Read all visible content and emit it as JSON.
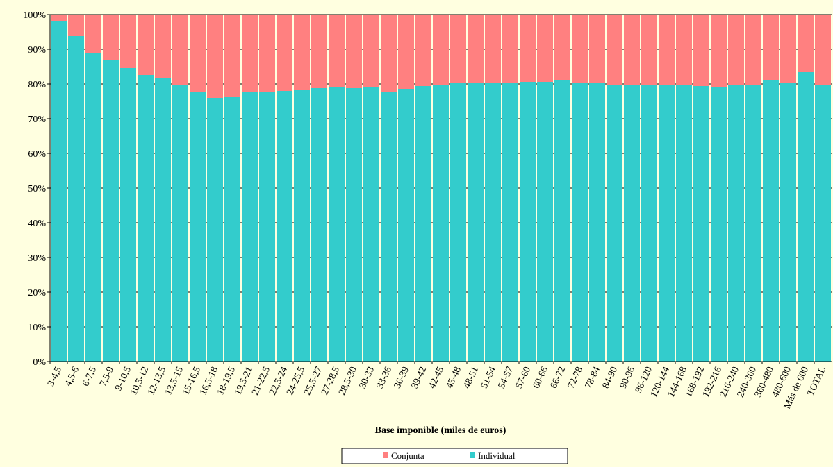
{
  "chart_data": {
    "type": "stacked_bar",
    "x_label": "Base imponible (miles de euros)",
    "categories": [
      "3-4,5",
      "4,5-6",
      "6-7,5",
      "7,5-9",
      "9-10,5",
      "10,5-12",
      "12-13,5",
      "13,5-15",
      "15-16,5",
      "16,5-18",
      "18-19,5",
      "19,5-21",
      "21-22,5",
      "22,5-24",
      "24-25,5",
      "25,5-27",
      "27-28,5",
      "28,5-30",
      "30-33",
      "33-36",
      "36-39",
      "39-42",
      "42-45",
      "45-48",
      "48-51",
      "51-54",
      "54-57",
      "57-60",
      "60-66",
      "66-72",
      "72-78",
      "78-84",
      "84-90",
      "90-96",
      "96-120",
      "120-144",
      "144-168",
      "168-192",
      "192-216",
      "216-240",
      "240-360",
      "360-480",
      "480-600",
      "Más de 600",
      "TOTAL"
    ],
    "series": [
      {
        "name": "Individual",
        "color": "#33cccc",
        "values": [
          98.2,
          93.8,
          89,
          86.8,
          84.6,
          82.6,
          81.8,
          79.8,
          77.6,
          76,
          76.2,
          77.6,
          77.8,
          78,
          78.4,
          78.8,
          79.2,
          78.8,
          79.2,
          77.6,
          78.6,
          79.4,
          79.6,
          80.2,
          80.4,
          80.2,
          80.4,
          80.6,
          80.6,
          81,
          80.4,
          80.2,
          79.6,
          79.8,
          79.8,
          79.6,
          79.6,
          79.4,
          79.2,
          79.6,
          79.6,
          81,
          80.4,
          83.4,
          79.8
        ]
      },
      {
        "name": "Conjunta",
        "color": "#ff8080",
        "values": [
          1.8,
          6.2,
          11,
          13.2,
          15.4,
          17.4,
          18.2,
          20.2,
          22.4,
          24,
          23.8,
          22.4,
          22.2,
          22,
          21.6,
          21.2,
          20.8,
          21.2,
          20.8,
          22.4,
          21.4,
          20.6,
          20.4,
          19.8,
          19.6,
          19.8,
          19.6,
          19.4,
          19.4,
          19,
          19.6,
          19.8,
          20.4,
          20.2,
          20.2,
          20.4,
          20.4,
          20.6,
          20.8,
          20.4,
          20.4,
          19,
          19.6,
          16.6,
          20.2
        ]
      }
    ],
    "legend_order": [
      "Conjunta",
      "Individual"
    ],
    "ylim": [
      0,
      100
    ],
    "yticks": [
      {
        "value": 0,
        "label": "0%"
      },
      {
        "value": 10,
        "label": "10%"
      },
      {
        "value": 20,
        "label": "20%"
      },
      {
        "value": 30,
        "label": "30%"
      },
      {
        "value": 40,
        "label": "40%"
      },
      {
        "value": 50,
        "label": "50%"
      },
      {
        "value": 60,
        "label": "60%"
      },
      {
        "value": 70,
        "label": "70%"
      },
      {
        "value": 80,
        "label": "80%"
      },
      {
        "value": 90,
        "label": "90%"
      },
      {
        "value": 100,
        "label": "100%"
      }
    ],
    "grid": true
  }
}
